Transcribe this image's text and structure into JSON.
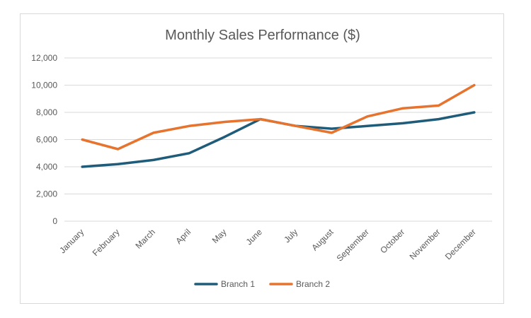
{
  "chart_data": {
    "type": "line",
    "title": "Monthly Sales Performance ($)",
    "xlabel": "",
    "ylabel": "",
    "categories": [
      "January",
      "February",
      "March",
      "April",
      "May",
      "June",
      "July",
      "August",
      "September",
      "October",
      "November",
      "December"
    ],
    "ylim": [
      0,
      12000
    ],
    "yticks": [
      0,
      2000,
      4000,
      6000,
      8000,
      10000,
      12000
    ],
    "ytick_labels": [
      "0",
      "2,000",
      "4,000",
      "6,000",
      "8,000",
      "10,000",
      "12,000"
    ],
    "grid": true,
    "legend_position": "bottom",
    "series": [
      {
        "name": "Branch 1",
        "color": "#1f5c7a",
        "values": [
          4000,
          4200,
          4500,
          5000,
          6200,
          7500,
          7000,
          6800,
          7000,
          7200,
          7500,
          8000
        ]
      },
      {
        "name": "Branch 2",
        "color": "#e6732e",
        "values": [
          6000,
          5300,
          6500,
          7000,
          7300,
          7500,
          7000,
          6500,
          7700,
          8300,
          8500,
          10000
        ]
      }
    ]
  }
}
